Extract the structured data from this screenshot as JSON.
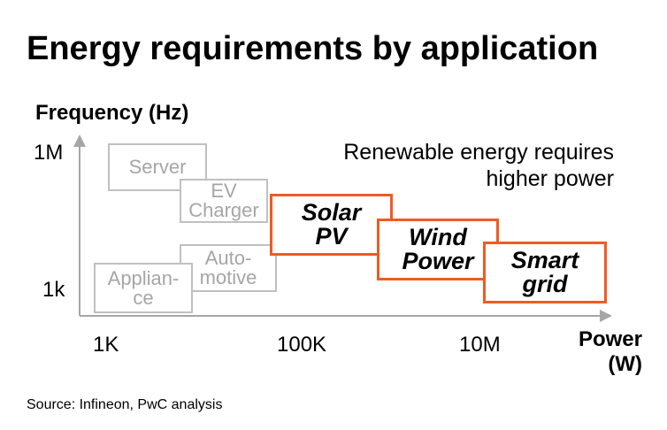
{
  "title": "Energy requirements by application",
  "y_axis": {
    "label": "Frequency (Hz)",
    "ticks": [
      "1M",
      "1k"
    ]
  },
  "x_axis": {
    "label_line1": "Power",
    "label_line2": "(W)",
    "ticks": [
      "1K",
      "100K",
      "10M"
    ]
  },
  "annotation": {
    "line1": "Renewable energy requires",
    "line2": "higher power"
  },
  "boxes": {
    "server": "Server",
    "ev_line1": "EV",
    "ev_line2": "Charger",
    "auto_line1": "Auto-",
    "auto_line2": "motive",
    "appliance_line1": "Applian-",
    "appliance_line2": "ce",
    "solar_line1": "Solar",
    "solar_line2": "PV",
    "wind_line1": "Wind",
    "wind_line2": "Power",
    "smart_line1": "Smart",
    "smart_line2": "grid"
  },
  "colors": {
    "highlight": "#f05a22",
    "muted_border": "#c0c0c0",
    "muted_text": "#a6a6a6",
    "axis": "#a6a6a6"
  },
  "source": "Source: Infineon, PwC analysis"
}
